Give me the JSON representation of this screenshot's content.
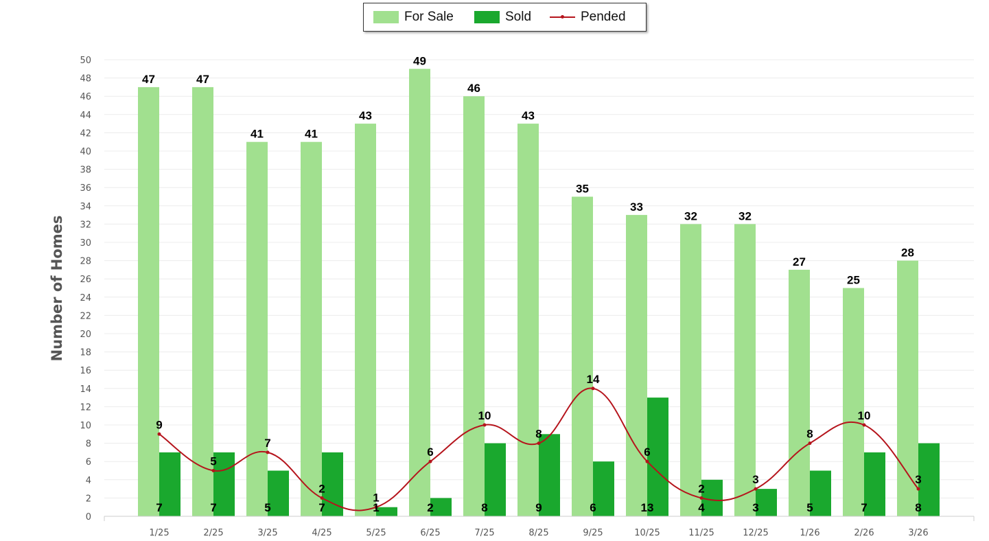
{
  "legend": {
    "for_sale": "For Sale",
    "sold": "Sold",
    "pended": "Pended"
  },
  "colors": {
    "for_sale": "#a1e08f",
    "sold": "#1aa82e",
    "pended": "#b5141c",
    "grid": "#ececec"
  },
  "chart_data": {
    "type": "bar",
    "categories": [
      "1/25",
      "2/25",
      "3/25",
      "4/25",
      "5/25",
      "6/25",
      "7/25",
      "8/25",
      "9/25",
      "10/25",
      "11/25",
      "12/25",
      "1/26",
      "2/26",
      "3/26"
    ],
    "series": [
      {
        "name": "For Sale",
        "type": "bar",
        "values": [
          47,
          47,
          41,
          41,
          43,
          49,
          46,
          43,
          35,
          33,
          32,
          32,
          27,
          25,
          28
        ]
      },
      {
        "name": "Sold",
        "type": "bar",
        "values": [
          7,
          7,
          5,
          7,
          1,
          2,
          8,
          9,
          6,
          13,
          4,
          3,
          5,
          7,
          8
        ]
      },
      {
        "name": "Pended",
        "type": "line",
        "values": [
          9,
          5,
          7,
          2,
          1,
          6,
          10,
          8,
          14,
          6,
          2,
          3,
          8,
          10,
          3
        ]
      }
    ],
    "ylabel": "Number of Homes",
    "xlabel": "",
    "ylim": [
      0,
      50
    ],
    "ytick_step": 2,
    "grid": true,
    "legend_position": "top-center"
  }
}
